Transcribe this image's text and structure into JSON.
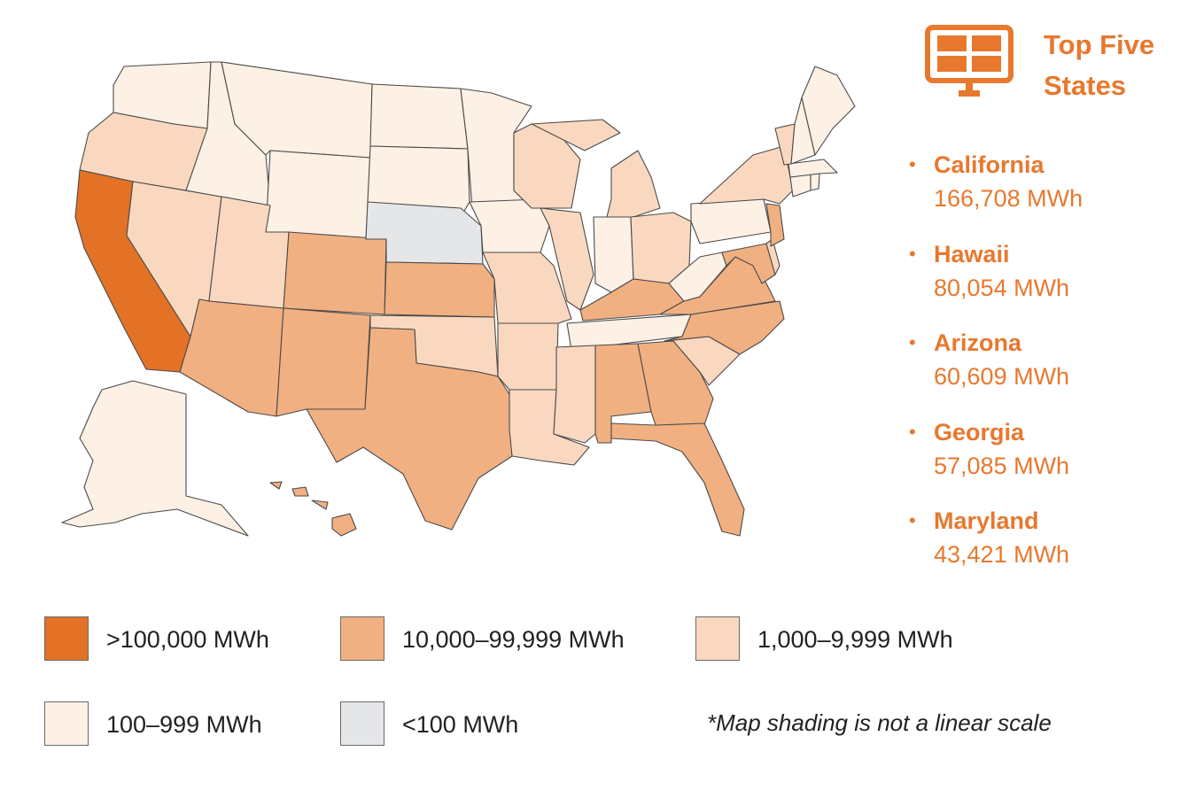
{
  "panel": {
    "title_line1": "Top Five",
    "title_line2": "States",
    "icon": "solar-panel-icon",
    "accent_color": "#e8782e",
    "states": [
      {
        "name": "California",
        "value": "166,708 MWh"
      },
      {
        "name": "Hawaii",
        "value": "80,054 MWh"
      },
      {
        "name": "Arizona",
        "value": "60,609 MWh"
      },
      {
        "name": "Georgia",
        "value": "57,085 MWh"
      },
      {
        "name": "Maryland",
        "value": "43,421 MWh"
      }
    ]
  },
  "legend": {
    "items": [
      {
        "label": ">100,000 MWh",
        "color": "#e37226"
      },
      {
        "label": "10,000–99,999 MWh",
        "color": "#f1b081"
      },
      {
        "label": "1,000–9,999 MWh",
        "color": "#fad8c0"
      },
      {
        "label": "100–999 MWh",
        "color": "#fdf0e4"
      },
      {
        "label": "<100 MWh",
        "color": "#e5e6e8"
      }
    ],
    "footnote": "*Map shading is not a linear scale"
  }
}
